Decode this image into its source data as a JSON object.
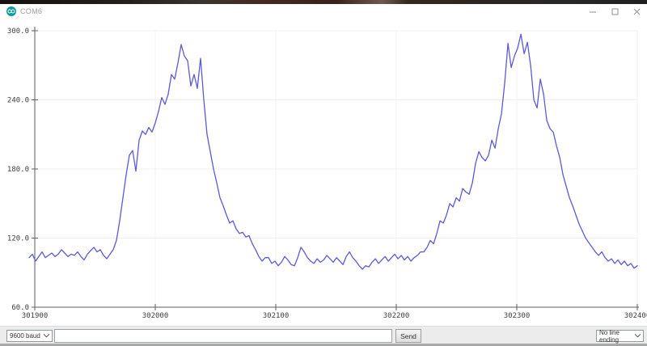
{
  "window": {
    "title": "COM6"
  },
  "serial_bar": {
    "baud_selector": {
      "value": "9600 baud"
    },
    "message_input": {
      "value": ""
    },
    "send_button": {
      "label": "Send"
    },
    "line_ending_selector": {
      "value": "No line ending"
    }
  },
  "chart_data": {
    "type": "line",
    "title": "",
    "legend": [],
    "grid": true,
    "line_color": "#5c5ad4",
    "axis_color": "#5e5e5e",
    "grid_color": "#f0f0f0",
    "xlim": [
      301900,
      302400
    ],
    "ylim": [
      60,
      300
    ],
    "x_ticks": [
      {
        "value": 301900,
        "label": "301900"
      },
      {
        "value": 302000,
        "label": "302000"
      },
      {
        "value": 302100,
        "label": "302100"
      },
      {
        "value": 302200,
        "label": "302200"
      },
      {
        "value": 302300,
        "label": "302300"
      },
      {
        "value": 302400,
        "label": "302400"
      }
    ],
    "y_ticks": [
      {
        "value": 300,
        "label": "300.0"
      },
      {
        "value": 240,
        "label": "240.0"
      },
      {
        "value": 180,
        "label": "180.0"
      },
      {
        "value": 120,
        "label": "120.0"
      },
      {
        "value": 60,
        "label": "60.0"
      }
    ],
    "series": [
      {
        "name": "serial-values",
        "x_start": 301895.3,
        "x_step": 2.685,
        "values": [
          103,
          106,
          100,
          104,
          108,
          103,
          105,
          107,
          104,
          106,
          110,
          107,
          104,
          106,
          105,
          108,
          104,
          101,
          106,
          109,
          112,
          108,
          110,
          105,
          102,
          106,
          110,
          118,
          135,
          155,
          175,
          192,
          196,
          178,
          205,
          213,
          210,
          216,
          212,
          220,
          230,
          242,
          236,
          245,
          262,
          258,
          272,
          288,
          278,
          274,
          252,
          262,
          250,
          276,
          240,
          210,
          195,
          180,
          168,
          155,
          148,
          140,
          133,
          135,
          128,
          124,
          125,
          121,
          122,
          115,
          110,
          104,
          100,
          103,
          103,
          98,
          100,
          96,
          99,
          104,
          101,
          97,
          96,
          103,
          112,
          108,
          103,
          100,
          98,
          102,
          99,
          101,
          105,
          102,
          99,
          103,
          100,
          97,
          104,
          108,
          103,
          100,
          96,
          93,
          96,
          95,
          99,
          102,
          98,
          101,
          104,
          100,
          103,
          106,
          102,
          105,
          101,
          104,
          100,
          103,
          105,
          108,
          108,
          112,
          118,
          115,
          124,
          135,
          133,
          140,
          150,
          147,
          155,
          152,
          163,
          160,
          158,
          168,
          185,
          195,
          190,
          187,
          192,
          205,
          198,
          215,
          228,
          255,
          289,
          268,
          278,
          285,
          297,
          280,
          290,
          270,
          240,
          233,
          258,
          245,
          222,
          215,
          212,
          200,
          190,
          175,
          165,
          155,
          148,
          140,
          132,
          126,
          120,
          116,
          112,
          108,
          105,
          108,
          103,
          100,
          102,
          98,
          101,
          97,
          100,
          96,
          98,
          94,
          96
        ]
      }
    ]
  }
}
